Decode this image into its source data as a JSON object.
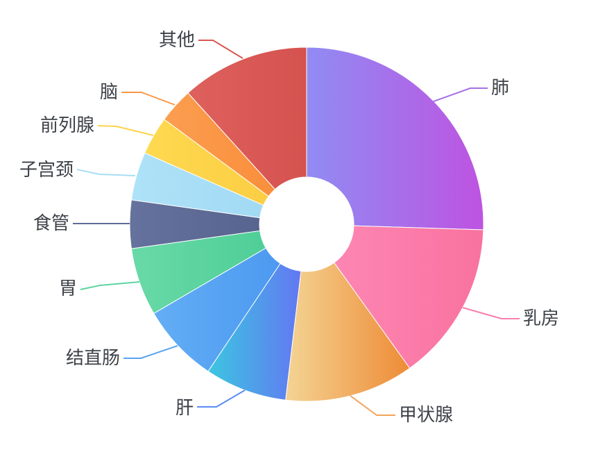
{
  "chart_data": {
    "type": "pie",
    "subtype": "donut",
    "title": "",
    "legend_position": "none",
    "background_color": "#ffffff",
    "label_color": "#3d4147",
    "direction": "clockwise",
    "start_angle_deg_from_top": 0,
    "inner_radius_ratio": 0.27,
    "value_unit": "% (estimated from slice angles)",
    "categories": [
      "肺",
      "乳房",
      "甲状腺",
      "肝",
      "结直肠",
      "胃",
      "食管",
      "子宫颈",
      "前列腺",
      "脑",
      "其他"
    ],
    "values": [
      25.5,
      14.6,
      11.8,
      7.5,
      7.2,
      6.2,
      4.4,
      4.4,
      3.5,
      3.2,
      11.7
    ],
    "slices": [
      {
        "label": "肺",
        "value": 25.5,
        "gradient_from": "#908cf3",
        "gradient_to": "#be53e1",
        "line_color": "#a66fe6"
      },
      {
        "label": "乳房",
        "value": 14.6,
        "gradient_from": "#fd86b3",
        "gradient_to": "#f9729f",
        "line_color": "#f87fad"
      },
      {
        "label": "甲状腺",
        "value": 11.8,
        "gradient_from": "#f4d494",
        "gradient_to": "#ee8b36",
        "line_color": "#f2a45b"
      },
      {
        "label": "肝",
        "value": 7.5,
        "gradient_from": "#3cc6e1",
        "gradient_to": "#6377f2",
        "line_color": "#5a8cf5"
      },
      {
        "label": "结直肠",
        "value": 7.2,
        "gradient_from": "#63aef5",
        "gradient_to": "#4c99f0",
        "line_color": "#58a4f2"
      },
      {
        "label": "胃",
        "value": 6.2,
        "gradient_from": "#69daa7",
        "gradient_to": "#4fce98",
        "line_color": "#5cd5a0"
      },
      {
        "label": "食管",
        "value": 4.4,
        "gradient_from": "#65729d",
        "gradient_to": "#57648f",
        "line_color": "#5f6b96"
      },
      {
        "label": "子宫颈",
        "value": 4.4,
        "gradient_from": "#aee2f8",
        "gradient_to": "#a2daf4",
        "line_color": "#a8def6"
      },
      {
        "label": "前列腺",
        "value": 3.5,
        "gradient_from": "#fed950",
        "gradient_to": "#fbce44",
        "line_color": "#fcd34b"
      },
      {
        "label": "脑",
        "value": 3.2,
        "gradient_from": "#fb9e50",
        "gradient_to": "#f98e3b",
        "line_color": "#fa9748"
      },
      {
        "label": "其他",
        "value": 11.7,
        "gradient_from": "#de615d",
        "gradient_to": "#d5524f",
        "line_color": "#d95752"
      }
    ]
  }
}
